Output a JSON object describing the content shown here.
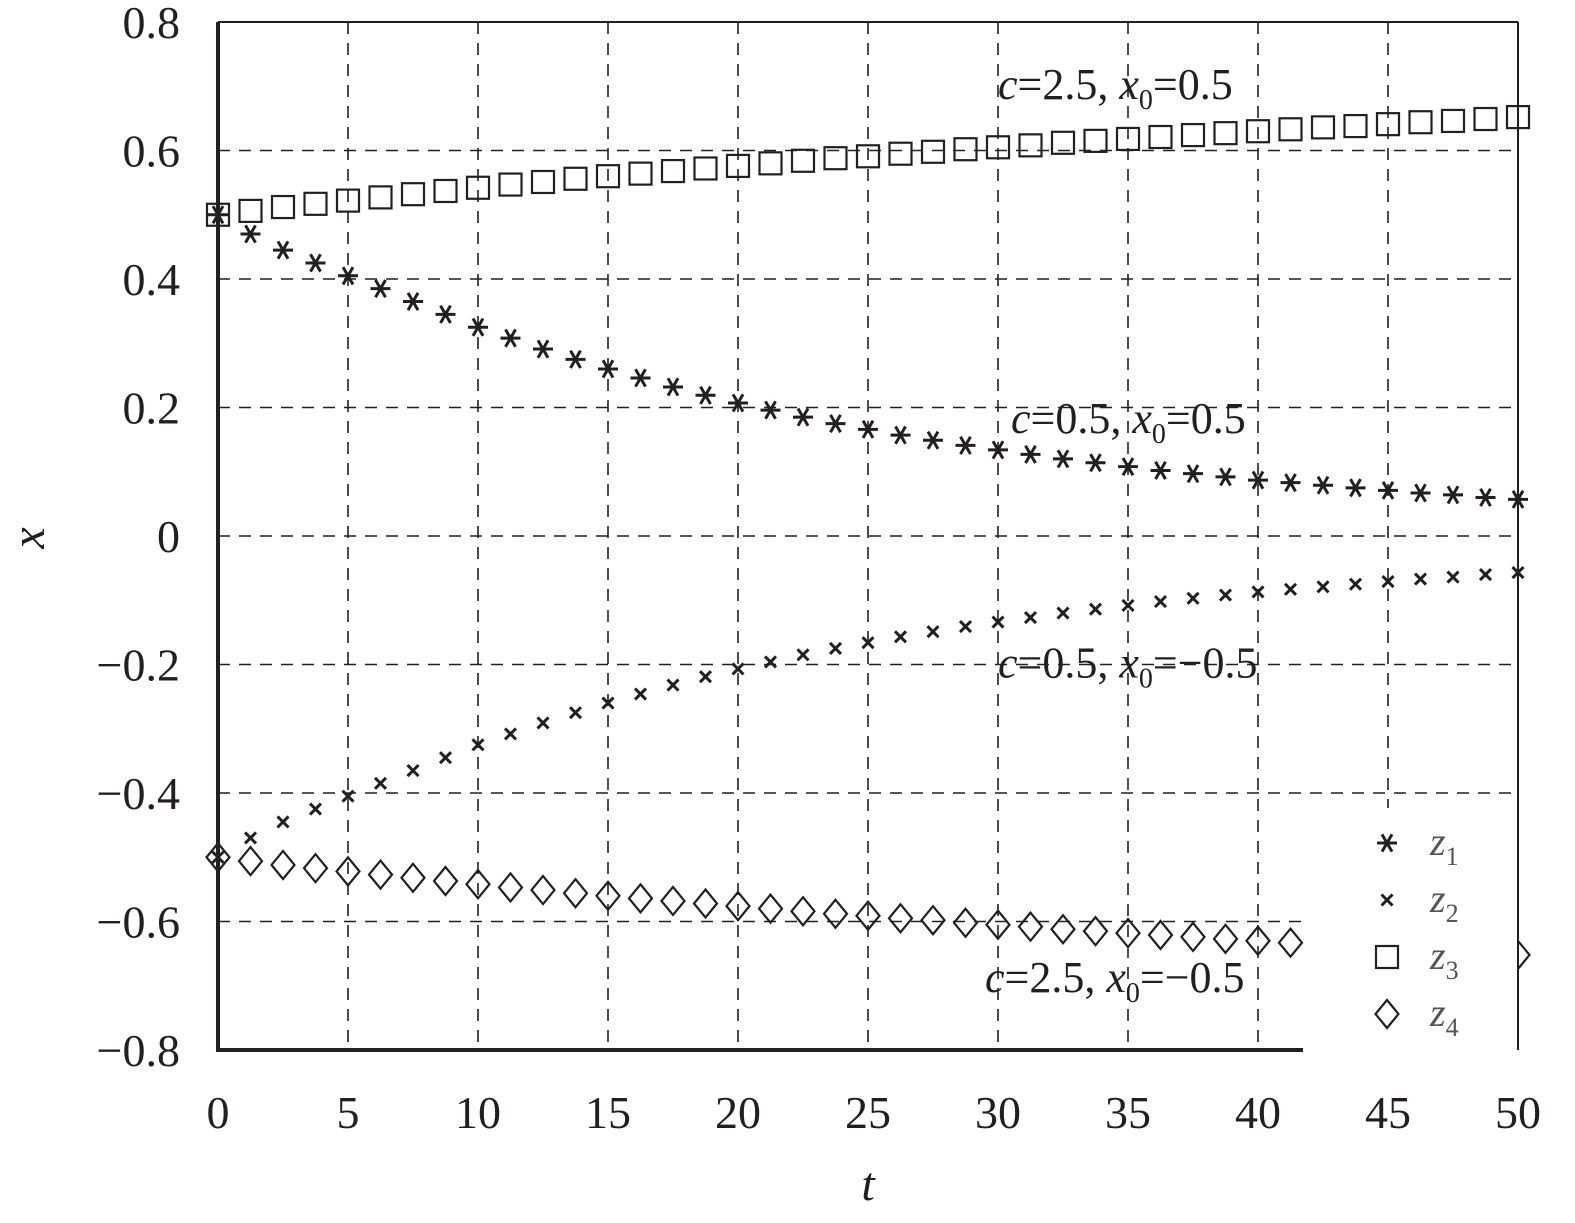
{
  "chart_data": {
    "type": "scatter",
    "title": "",
    "xlabel": "t",
    "ylabel": "x",
    "xlim": [
      0,
      50
    ],
    "ylim": [
      -0.8,
      0.8
    ],
    "xticks": [
      "0",
      "5",
      "10",
      "15",
      "20",
      "25",
      "30",
      "35",
      "40",
      "45",
      "50"
    ],
    "yticks": [
      "0.8",
      "0.6",
      "0.4",
      "0.2",
      "0",
      "−0.2",
      "−0.4",
      "−0.6",
      "−0.8"
    ],
    "grid": true,
    "legend_position": "bottom-right",
    "x": [
      0,
      1.25,
      2.5,
      3.75,
      5,
      6.25,
      7.5,
      8.75,
      10,
      11.25,
      12.5,
      13.75,
      15,
      16.25,
      17.5,
      18.75,
      20,
      21.25,
      22.5,
      23.75,
      25,
      26.25,
      27.5,
      28.75,
      30,
      31.25,
      32.5,
      33.75,
      35,
      36.25,
      37.5,
      38.75,
      40,
      41.25,
      42.5,
      43.75,
      45,
      46.25,
      47.5,
      48.75,
      50
    ],
    "series": [
      {
        "name": "z1",
        "marker": "asterisk",
        "values": [
          0.5,
          0.47,
          0.445,
          0.425,
          0.405,
          0.385,
          0.365,
          0.345,
          0.325,
          0.308,
          0.291,
          0.275,
          0.26,
          0.246,
          0.232,
          0.219,
          0.207,
          0.196,
          0.185,
          0.175,
          0.166,
          0.157,
          0.149,
          0.141,
          0.134,
          0.127,
          0.12,
          0.114,
          0.108,
          0.102,
          0.097,
          0.092,
          0.087,
          0.083,
          0.079,
          0.075,
          0.071,
          0.067,
          0.064,
          0.06,
          0.057
        ]
      },
      {
        "name": "z2",
        "marker": "cross",
        "values": [
          -0.5,
          -0.47,
          -0.445,
          -0.425,
          -0.405,
          -0.385,
          -0.365,
          -0.345,
          -0.325,
          -0.308,
          -0.291,
          -0.275,
          -0.26,
          -0.246,
          -0.232,
          -0.219,
          -0.207,
          -0.196,
          -0.185,
          -0.175,
          -0.166,
          -0.157,
          -0.149,
          -0.141,
          -0.134,
          -0.127,
          -0.12,
          -0.114,
          -0.108,
          -0.102,
          -0.097,
          -0.092,
          -0.087,
          -0.083,
          -0.079,
          -0.075,
          -0.071,
          -0.067,
          -0.064,
          -0.06,
          -0.057
        ]
      },
      {
        "name": "z3",
        "marker": "square",
        "values": [
          0.5,
          0.506,
          0.512,
          0.517,
          0.522,
          0.527,
          0.532,
          0.537,
          0.542,
          0.547,
          0.551,
          0.556,
          0.56,
          0.564,
          0.568,
          0.572,
          0.576,
          0.58,
          0.584,
          0.588,
          0.591,
          0.595,
          0.598,
          0.602,
          0.605,
          0.608,
          0.612,
          0.615,
          0.618,
          0.621,
          0.624,
          0.627,
          0.63,
          0.633,
          0.636,
          0.638,
          0.641,
          0.644,
          0.646,
          0.649,
          0.652
        ]
      },
      {
        "name": "z4",
        "marker": "diamond",
        "values": [
          -0.5,
          -0.506,
          -0.512,
          -0.517,
          -0.522,
          -0.527,
          -0.532,
          -0.537,
          -0.542,
          -0.547,
          -0.551,
          -0.556,
          -0.56,
          -0.564,
          -0.568,
          -0.572,
          -0.576,
          -0.58,
          -0.584,
          -0.588,
          -0.591,
          -0.595,
          -0.598,
          -0.602,
          -0.605,
          -0.608,
          -0.612,
          -0.615,
          -0.618,
          -0.621,
          -0.624,
          -0.627,
          -0.63,
          -0.633,
          null,
          null,
          null,
          null,
          null,
          null,
          -0.652
        ]
      }
    ],
    "annotations": [
      {
        "text": "c=2.5, x0=0.5",
        "c": "2.5",
        "x0": "0.5",
        "at": [
          30,
          0.68
        ]
      },
      {
        "text": "c=0.5, x0=0.5",
        "c": "0.5",
        "x0": "0.5",
        "at": [
          30.5,
          0.16
        ]
      },
      {
        "text": "c=0.5, x0=−0.5",
        "c": "0.5",
        "x0": "−0.5",
        "at": [
          30,
          -0.22
        ]
      },
      {
        "text": "c=2.5, x0=−0.5",
        "c": "2.5",
        "x0": "−0.5",
        "at": [
          29.5,
          -0.71
        ]
      }
    ],
    "legend": [
      {
        "label": "z",
        "sub": "1",
        "marker": "asterisk"
      },
      {
        "label": "z",
        "sub": "2",
        "marker": "cross"
      },
      {
        "label": "z",
        "sub": "3",
        "marker": "square"
      },
      {
        "label": "z",
        "sub": "4",
        "marker": "diamond"
      }
    ]
  }
}
